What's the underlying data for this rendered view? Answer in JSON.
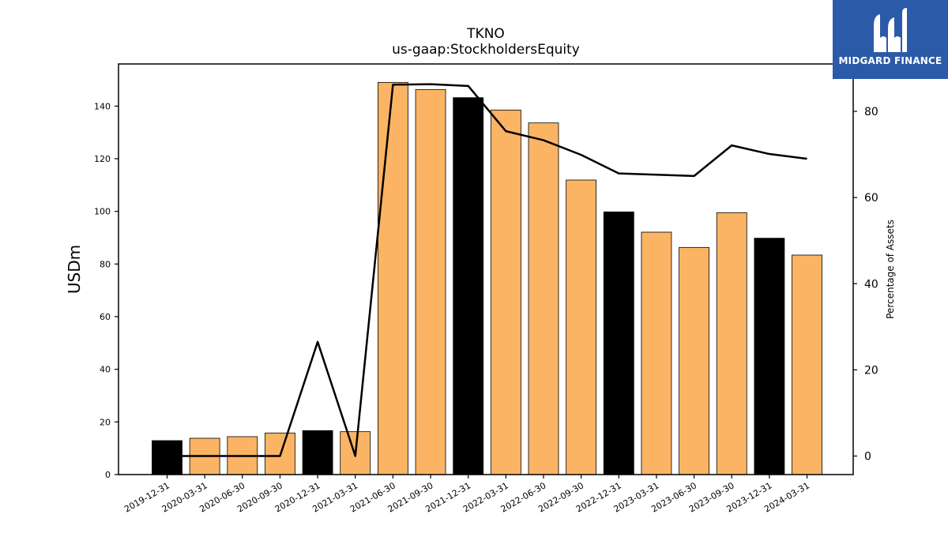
{
  "chart_data": {
    "type": "bar",
    "title": "TKNO",
    "subtitle": "us-gaap:StockholdersEquity",
    "ylabel": "USDm",
    "y2label": "Percentage of Assets",
    "ylim": [
      0,
      156
    ],
    "y2lim": [
      -4.3,
      91
    ],
    "yticks": [
      0,
      20,
      40,
      60,
      80,
      100,
      120,
      140
    ],
    "y2ticks": [
      0,
      20,
      40,
      60,
      80
    ],
    "categories": [
      "2019-12-31",
      "2020-03-31",
      "2020-06-30",
      "2020-09-30",
      "2020-12-31",
      "2021-03-31",
      "2021-06-30",
      "2021-09-30",
      "2021-12-31",
      "2022-03-31",
      "2022-06-30",
      "2022-09-30",
      "2022-12-31",
      "2023-03-31",
      "2023-06-30",
      "2023-09-30",
      "2023-12-31",
      "2024-03-31"
    ],
    "series": [
      {
        "type": "bar",
        "axis": "left",
        "values": [
          12.9,
          13.8,
          14.4,
          15.8,
          16.7,
          16.3,
          149.0,
          146.3,
          143.2,
          138.5,
          133.6,
          111.9,
          99.8,
          92.1,
          86.3,
          99.5,
          89.8,
          83.4
        ],
        "colors": [
          "#000000",
          "#fbb464",
          "#fbb464",
          "#fbb464",
          "#000000",
          "#fbb464",
          "#fbb464",
          "#fbb464",
          "#000000",
          "#fbb464",
          "#fbb464",
          "#fbb464",
          "#000000",
          "#fbb464",
          "#fbb464",
          "#fbb464",
          "#000000",
          "#fbb464"
        ]
      },
      {
        "type": "line",
        "axis": "right",
        "color": "#000000",
        "values": [
          0.0,
          0.0,
          0.0,
          0.0,
          26.5,
          0.0,
          86.2,
          86.3,
          85.9,
          75.4,
          73.3,
          69.9,
          65.6,
          65.3,
          65.0,
          72.1,
          70.1,
          69.0
        ]
      }
    ]
  },
  "logo": {
    "text": "MIDGARD FINANCE",
    "color": "#2b5aa8"
  }
}
